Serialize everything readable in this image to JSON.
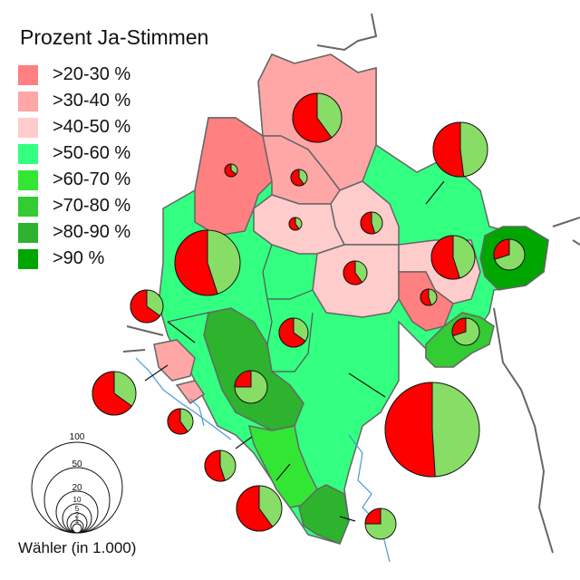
{
  "title": "Prozent Ja-Stimmen",
  "legend": [
    {
      "label": ">20-30 %",
      "color": "#ff8080"
    },
    {
      "label": ">30-40 %",
      "color": "#ffa6a6"
    },
    {
      "label": ">40-50 %",
      "color": "#ffcccc"
    },
    {
      "label": ">50-60 %",
      "color": "#33ff80"
    },
    {
      "label": ">60-70 %",
      "color": "#33e633"
    },
    {
      "label": ">70-80 %",
      "color": "#33cc33"
    },
    {
      "label": ">80-90 %",
      "color": "#2db32d"
    },
    {
      "label": ">90 %",
      "color": "#00a600"
    }
  ],
  "size_scale": {
    "caption": "Wähler (in 1.000)",
    "values": [
      "100",
      "50",
      "20",
      "10",
      "5",
      "2",
      "1"
    ]
  },
  "colors": {
    "pie_yes": "#88dd66",
    "pie_no": "#ff0000",
    "border": "#666666",
    "water": "#4499dd"
  }
}
